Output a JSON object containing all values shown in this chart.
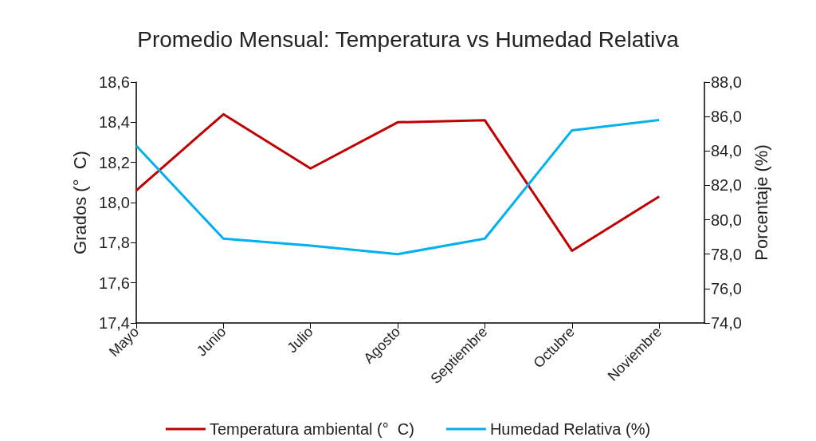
{
  "chart_data": {
    "type": "line",
    "title": "Promedio Mensual: Temperatura vs Humedad Relativa",
    "ylabel": "Grados (°  C)",
    "y2label": "Porcentaje (%)",
    "categories": [
      "Mayo",
      "Junio",
      "Julio",
      "Agosto",
      "Septiembre",
      "Octubre",
      "Noviembre"
    ],
    "series": [
      {
        "name": "Temperatura ambiental (°  C)",
        "color": "#c00000",
        "values": [
          18.06,
          18.44,
          18.17,
          18.4,
          18.41,
          17.76,
          18.03
        ]
      },
      {
        "name": "Humedad Relativa (%)",
        "color": "#00b0f0",
        "axis": "y2",
        "values": [
          84.3,
          78.9,
          78.5,
          78.0,
          78.9,
          85.2,
          85.8
        ]
      }
    ],
    "ylim": [
      17.4,
      18.6
    ],
    "yticks": [
      {
        "value": 17.4,
        "label": "17,4"
      },
      {
        "value": 17.6,
        "label": "17,6"
      },
      {
        "value": 17.8,
        "label": "17,8"
      },
      {
        "value": 18.0,
        "label": "18,0"
      },
      {
        "value": 18.2,
        "label": "18,2"
      },
      {
        "value": 18.4,
        "label": "18,4"
      },
      {
        "value": 18.6,
        "label": "18,6"
      }
    ],
    "y2lim": [
      74,
      88
    ],
    "y2ticks": [
      {
        "value": 74,
        "label": "74,0"
      },
      {
        "value": 76,
        "label": "76,0"
      },
      {
        "value": 78,
        "label": "78,0"
      },
      {
        "value": 80,
        "label": "80,0"
      },
      {
        "value": 82,
        "label": "82,0"
      },
      {
        "value": 84,
        "label": "84,0"
      },
      {
        "value": 86,
        "label": "86,0"
      },
      {
        "value": 88,
        "label": "88,0"
      }
    ],
    "grid": false,
    "legend": "bottom",
    "marker": "none",
    "line_style": "solid"
  }
}
